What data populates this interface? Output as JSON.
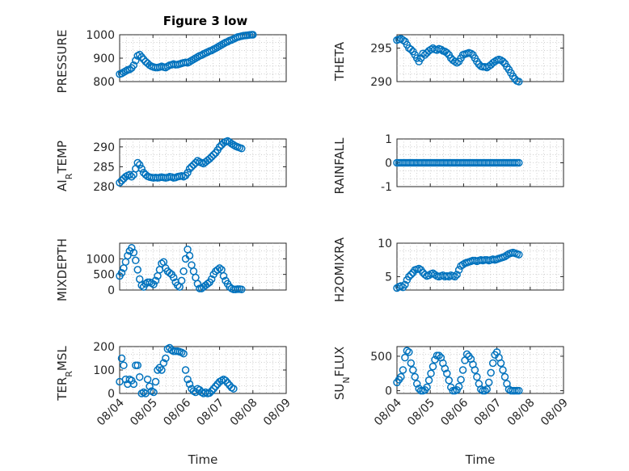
{
  "title": "Figure 3 low",
  "chart_data": [
    {
      "type": "scatter",
      "ylabel": "PRESSURE",
      "ylim": [
        800,
        1000
      ],
      "yticks": [
        800,
        900,
        1000
      ],
      "x": [
        0.0,
        0.06,
        0.12,
        0.18,
        0.24,
        0.3,
        0.36,
        0.42,
        0.48,
        0.54,
        0.6,
        0.66,
        0.72,
        0.78,
        0.84,
        0.9,
        0.96,
        1.02,
        1.08,
        1.14,
        1.2,
        1.26,
        1.32,
        1.38,
        1.44,
        1.5,
        1.56,
        1.62,
        1.68,
        1.74,
        1.8,
        1.86,
        1.92,
        1.98,
        2.04,
        2.1,
        2.16,
        2.22,
        2.28,
        2.34,
        2.4,
        2.46,
        2.52,
        2.58,
        2.64,
        2.7,
        2.76,
        2.82,
        2.88,
        2.94,
        3.0,
        3.06,
        3.12,
        3.18,
        3.24,
        3.3,
        3.36,
        3.42,
        3.48,
        3.54,
        3.6,
        3.66,
        3.72,
        3.78,
        3.84,
        3.9,
        3.96,
        4.0
      ],
      "y": [
        832,
        835,
        840,
        845,
        850,
        852,
        858,
        870,
        890,
        910,
        915,
        905,
        895,
        885,
        878,
        870,
        865,
        862,
        860,
        860,
        862,
        865,
        862,
        860,
        865,
        870,
        872,
        875,
        872,
        873,
        875,
        878,
        880,
        882,
        880,
        885,
        890,
        895,
        900,
        905,
        910,
        913,
        918,
        922,
        926,
        930,
        933,
        938,
        942,
        947,
        952,
        957,
        962,
        967,
        970,
        975,
        978,
        982,
        986,
        990,
        992,
        994,
        996,
        997,
        998,
        999,
        1000,
        1000
      ]
    },
    {
      "type": "scatter",
      "ylabel": "THETA",
      "ylim": [
        290,
        297
      ],
      "yticks": [
        290,
        295
      ],
      "x": [
        0.0,
        0.06,
        0.12,
        0.18,
        0.24,
        0.3,
        0.36,
        0.42,
        0.48,
        0.54,
        0.6,
        0.66,
        0.72,
        0.78,
        0.84,
        0.9,
        0.96,
        1.02,
        1.08,
        1.14,
        1.2,
        1.26,
        1.32,
        1.38,
        1.44,
        1.5,
        1.56,
        1.62,
        1.68,
        1.74,
        1.8,
        1.86,
        1.92,
        1.98,
        2.04,
        2.1,
        2.16,
        2.22,
        2.28,
        2.34,
        2.4,
        2.46,
        2.52,
        2.58,
        2.64,
        2.7,
        2.76,
        2.82,
        2.88,
        2.94,
        3.0,
        3.06,
        3.12,
        3.18,
        3.24,
        3.3,
        3.36,
        3.42,
        3.48,
        3.54,
        3.6,
        3.66,
        3.72,
        3.78,
        3.84,
        3.9,
        3.96,
        4.0
      ],
      "y": [
        296.2,
        296.3,
        296.4,
        296.2,
        296.0,
        295.5,
        295.0,
        294.8,
        294.5,
        294.0,
        293.5,
        293.0,
        293.5,
        294.2,
        294.0,
        294.3,
        294.6,
        294.8,
        295.0,
        294.8,
        294.7,
        294.9,
        294.8,
        294.6,
        294.5,
        294.3,
        294.0,
        293.5,
        293.2,
        293.0,
        292.8,
        293.0,
        293.5,
        294.0,
        294.1,
        294.2,
        294.3,
        294.2,
        294.0,
        293.5,
        293.0,
        292.6,
        292.3,
        292.2,
        292.2,
        292.1,
        292.3,
        292.5,
        292.8,
        293.0,
        293.2,
        293.3,
        293.2,
        293.0,
        292.7,
        292.2,
        291.8,
        291.3,
        290.8,
        290.4,
        290.1,
        290.0,
        null,
        null,
        null,
        null,
        null,
        null
      ]
    },
    {
      "type": "scatter",
      "ylabel": "AIR_TEMP",
      "ylim": [
        280,
        292
      ],
      "yticks": [
        280,
        285,
        290
      ],
      "x": [
        0.0,
        0.06,
        0.12,
        0.18,
        0.24,
        0.3,
        0.36,
        0.42,
        0.48,
        0.54,
        0.6,
        0.66,
        0.72,
        0.78,
        0.84,
        0.9,
        0.96,
        1.02,
        1.08,
        1.14,
        1.2,
        1.26,
        1.32,
        1.38,
        1.44,
        1.5,
        1.56,
        1.62,
        1.68,
        1.74,
        1.8,
        1.86,
        1.92,
        1.98,
        2.04,
        2.1,
        2.16,
        2.22,
        2.28,
        2.34,
        2.4,
        2.46,
        2.52,
        2.58,
        2.64,
        2.7,
        2.76,
        2.82,
        2.88,
        2.94,
        3.0,
        3.06,
        3.12,
        3.18,
        3.24,
        3.3,
        3.36,
        3.42,
        3.48,
        3.54,
        3.6,
        3.66,
        3.72,
        3.78,
        3.84,
        3.9,
        3.96,
        4.0
      ],
      "y": [
        281.0,
        281.5,
        282.0,
        282.5,
        282.8,
        283.0,
        282.5,
        283.0,
        284.5,
        286.0,
        285.5,
        284.5,
        283.5,
        283.0,
        282.6,
        282.4,
        282.3,
        282.2,
        282.3,
        282.2,
        282.3,
        282.4,
        282.3,
        282.2,
        282.3,
        282.5,
        282.4,
        282.2,
        282.3,
        282.5,
        282.6,
        282.7,
        282.5,
        282.8,
        283.5,
        284.5,
        285.0,
        285.5,
        286.0,
        286.5,
        286.2,
        286.0,
        285.8,
        286.2,
        286.6,
        287.0,
        287.5,
        288.0,
        288.5,
        289.2,
        290.0,
        290.5,
        291.0,
        291.3,
        291.5,
        291.2,
        290.8,
        290.5,
        290.2,
        290.0,
        289.8,
        289.6,
        null,
        null,
        null,
        null,
        null,
        null
      ]
    },
    {
      "type": "scatter",
      "ylabel": "RAINFALL",
      "ylim": [
        -1,
        1
      ],
      "yticks": [
        -1,
        0,
        1
      ],
      "x": [
        0.0,
        0.06,
        0.12,
        0.18,
        0.24,
        0.3,
        0.36,
        0.42,
        0.48,
        0.54,
        0.6,
        0.66,
        0.72,
        0.78,
        0.84,
        0.9,
        0.96,
        1.02,
        1.08,
        1.14,
        1.2,
        1.26,
        1.32,
        1.38,
        1.44,
        1.5,
        1.56,
        1.62,
        1.68,
        1.74,
        1.8,
        1.86,
        1.92,
        1.98,
        2.04,
        2.1,
        2.16,
        2.22,
        2.28,
        2.34,
        2.4,
        2.46,
        2.52,
        2.58,
        2.64,
        2.7,
        2.76,
        2.82,
        2.88,
        2.94,
        3.0,
        3.06,
        3.12,
        3.18,
        3.24,
        3.3,
        3.36,
        3.42,
        3.48,
        3.54,
        3.6,
        3.66,
        3.72,
        3.78,
        3.84,
        3.9,
        3.96,
        4.0
      ],
      "y": [
        0,
        0,
        0,
        0,
        0,
        0,
        0,
        0,
        0,
        0,
        0,
        0,
        0,
        0,
        0,
        0,
        0,
        0,
        0,
        0,
        0,
        0,
        0,
        0,
        0,
        0,
        0,
        0,
        0,
        0,
        0,
        0,
        0,
        0,
        0,
        0,
        0,
        0,
        0,
        0,
        0,
        0,
        0,
        0,
        0,
        0,
        0,
        0,
        0,
        0,
        0,
        0,
        0,
        0,
        0,
        0,
        0,
        0,
        0,
        0,
        0,
        0,
        null,
        null,
        null,
        null,
        null,
        null
      ]
    },
    {
      "type": "scatter",
      "ylabel": "MIXDEPTH",
      "ylim": [
        0,
        1500
      ],
      "yticks": [
        0,
        500,
        1000
      ],
      "x": [
        0.0,
        0.06,
        0.12,
        0.18,
        0.24,
        0.3,
        0.36,
        0.42,
        0.48,
        0.54,
        0.6,
        0.66,
        0.72,
        0.78,
        0.84,
        0.9,
        0.96,
        1.02,
        1.08,
        1.14,
        1.2,
        1.26,
        1.32,
        1.38,
        1.44,
        1.5,
        1.56,
        1.62,
        1.68,
        1.74,
        1.8,
        1.86,
        1.92,
        1.98,
        2.04,
        2.1,
        2.16,
        2.22,
        2.28,
        2.34,
        2.4,
        2.46,
        2.52,
        2.58,
        2.64,
        2.7,
        2.76,
        2.82,
        2.88,
        2.94,
        3.0,
        3.06,
        3.12,
        3.18,
        3.24,
        3.3,
        3.36,
        3.42,
        3.48,
        3.54,
        3.6,
        3.66,
        3.72,
        3.78,
        3.84,
        3.9,
        3.96,
        4.0
      ],
      "y": [
        450,
        550,
        700,
        900,
        1100,
        1250,
        1350,
        1200,
        950,
        650,
        350,
        150,
        100,
        200,
        250,
        250,
        220,
        180,
        300,
        450,
        650,
        850,
        900,
        700,
        600,
        550,
        500,
        400,
        250,
        150,
        100,
        300,
        600,
        1000,
        1300,
        1100,
        800,
        600,
        400,
        200,
        50,
        50,
        100,
        150,
        200,
        250,
        350,
        500,
        600,
        650,
        700,
        650,
        450,
        300,
        200,
        100,
        50,
        20,
        20,
        30,
        30,
        20,
        null,
        null,
        null,
        null,
        null,
        null
      ]
    },
    {
      "type": "scatter",
      "ylabel": "H2OMIXRA",
      "ylim": [
        3,
        10
      ],
      "yticks": [
        5,
        10
      ],
      "x": [
        0.0,
        0.06,
        0.12,
        0.18,
        0.24,
        0.3,
        0.36,
        0.42,
        0.48,
        0.54,
        0.6,
        0.66,
        0.72,
        0.78,
        0.84,
        0.9,
        0.96,
        1.02,
        1.08,
        1.14,
        1.2,
        1.26,
        1.32,
        1.38,
        1.44,
        1.5,
        1.56,
        1.62,
        1.68,
        1.74,
        1.8,
        1.86,
        1.92,
        1.98,
        2.04,
        2.1,
        2.16,
        2.22,
        2.28,
        2.34,
        2.4,
        2.46,
        2.52,
        2.58,
        2.64,
        2.7,
        2.76,
        2.82,
        2.88,
        2.94,
        3.0,
        3.06,
        3.12,
        3.18,
        3.24,
        3.3,
        3.36,
        3.42,
        3.48,
        3.54,
        3.6,
        3.66,
        3.72,
        3.78,
        3.84,
        3.9,
        3.96,
        4.0
      ],
      "y": [
        3.3,
        3.5,
        3.6,
        3.4,
        3.8,
        4.5,
        5.0,
        5.3,
        5.6,
        6.0,
        6.1,
        6.2,
        6.0,
        5.6,
        5.3,
        5.1,
        5.2,
        5.4,
        5.5,
        5.3,
        5.1,
        5.0,
        5.1,
        5.2,
        5.0,
        5.1,
        5.0,
        5.2,
        5.1,
        5.0,
        5.3,
        6.0,
        6.6,
        6.8,
        7.0,
        7.1,
        7.2,
        7.3,
        7.4,
        7.4,
        7.3,
        7.4,
        7.5,
        7.4,
        7.5,
        7.5,
        7.4,
        7.5,
        7.6,
        7.5,
        7.6,
        7.7,
        7.8,
        7.9,
        8.0,
        8.2,
        8.4,
        8.5,
        8.6,
        8.5,
        8.4,
        8.3,
        null,
        null,
        null,
        null,
        null,
        null
      ]
    },
    {
      "type": "scatter",
      "ylabel": "TERR_MSL",
      "ylim": [
        0,
        200
      ],
      "yticks": [
        0,
        100,
        200
      ],
      "x": [
        0.0,
        0.06,
        0.12,
        0.18,
        0.24,
        0.3,
        0.36,
        0.42,
        0.48,
        0.54,
        0.6,
        0.66,
        0.72,
        0.78,
        0.84,
        0.9,
        0.96,
        1.02,
        1.08,
        1.14,
        1.2,
        1.26,
        1.32,
        1.38,
        1.44,
        1.5,
        1.56,
        1.62,
        1.68,
        1.74,
        1.8,
        1.86,
        1.92,
        1.98,
        2.04,
        2.1,
        2.16,
        2.22,
        2.28,
        2.34,
        2.4,
        2.46,
        2.52,
        2.58,
        2.64,
        2.7,
        2.76,
        2.82,
        2.88,
        2.94,
        3.0,
        3.06,
        3.12,
        3.18,
        3.24,
        3.3,
        3.36,
        3.42,
        3.48,
        3.54,
        3.6,
        3.66,
        3.72,
        3.78,
        3.84,
        3.9,
        3.96,
        4.0
      ],
      "y": [
        50,
        150,
        120,
        60,
        40,
        60,
        55,
        40,
        120,
        120,
        70,
        0,
        5,
        0,
        60,
        30,
        10,
        5,
        50,
        100,
        110,
        100,
        130,
        150,
        190,
        195,
        185,
        180,
        180,
        180,
        178,
        175,
        170,
        100,
        60,
        40,
        20,
        10,
        5,
        20,
        15,
        5,
        0,
        5,
        0,
        2,
        10,
        20,
        30,
        40,
        50,
        55,
        60,
        55,
        45,
        35,
        25,
        20,
        null,
        null,
        null,
        null,
        null,
        null,
        null,
        null,
        null,
        null
      ]
    },
    {
      "type": "scatter",
      "ylabel": "SUN_FLUX",
      "ylim": [
        -40,
        640
      ],
      "yticks": [
        0,
        500
      ],
      "x": [
        0.0,
        0.06,
        0.12,
        0.18,
        0.24,
        0.3,
        0.36,
        0.42,
        0.48,
        0.54,
        0.6,
        0.66,
        0.72,
        0.78,
        0.84,
        0.9,
        0.96,
        1.02,
        1.08,
        1.14,
        1.2,
        1.26,
        1.32,
        1.38,
        1.44,
        1.5,
        1.56,
        1.62,
        1.68,
        1.74,
        1.8,
        1.86,
        1.92,
        1.98,
        2.04,
        2.1,
        2.16,
        2.22,
        2.28,
        2.34,
        2.4,
        2.46,
        2.52,
        2.58,
        2.64,
        2.7,
        2.76,
        2.82,
        2.88,
        2.94,
        3.0,
        3.06,
        3.12,
        3.18,
        3.24,
        3.3,
        3.36,
        3.42,
        3.48,
        3.54,
        3.6,
        3.66,
        3.72,
        3.78,
        3.84,
        3.9,
        3.96,
        4.0
      ],
      "y": [
        120,
        160,
        200,
        300,
        480,
        580,
        560,
        400,
        300,
        200,
        100,
        30,
        0,
        0,
        10,
        50,
        150,
        250,
        350,
        450,
        510,
        510,
        480,
        400,
        320,
        250,
        150,
        50,
        0,
        0,
        10,
        60,
        160,
        300,
        440,
        530,
        500,
        460,
        380,
        300,
        200,
        100,
        20,
        0,
        0,
        20,
        120,
        260,
        400,
        520,
        560,
        480,
        400,
        300,
        200,
        100,
        20,
        0,
        0,
        0,
        0,
        0,
        null,
        null,
        null,
        null,
        null,
        null
      ]
    }
  ],
  "xticks": [
    "08/04",
    "08/05",
    "08/06",
    "08/07",
    "08/08",
    "08/09"
  ],
  "xlabel": "Time"
}
